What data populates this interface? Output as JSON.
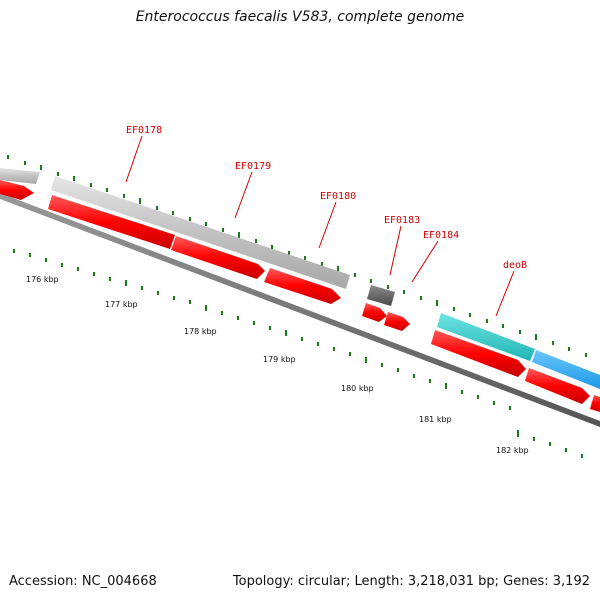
{
  "header": {
    "title": "Enterococcus faecalis V583, complete genome"
  },
  "footer": {
    "accession": "Accession: NC_004668",
    "summary": "Topology: circular; Length: 3,218,031 bp; Genes: 3,192"
  },
  "colors": {
    "cds_forward": "#ff0000",
    "gene_gray": "#bdbdbd",
    "gene_dark": "#666666",
    "gene_teal": "#33cccc",
    "gene_blue": "#33aaff",
    "tick_green": "#1a7a1a",
    "label_red": "#d40000",
    "backbone": "#777777"
  },
  "gene_labels": [
    "EF0178",
    "EF0179",
    "EF0180",
    "EF0183",
    "EF0184",
    "deoB"
  ],
  "scale_labels": [
    "176 kbp",
    "177 kbp",
    "178 kbp",
    "179 kbp",
    "180 kbp",
    "181 kbp",
    "182 kbp"
  ]
}
